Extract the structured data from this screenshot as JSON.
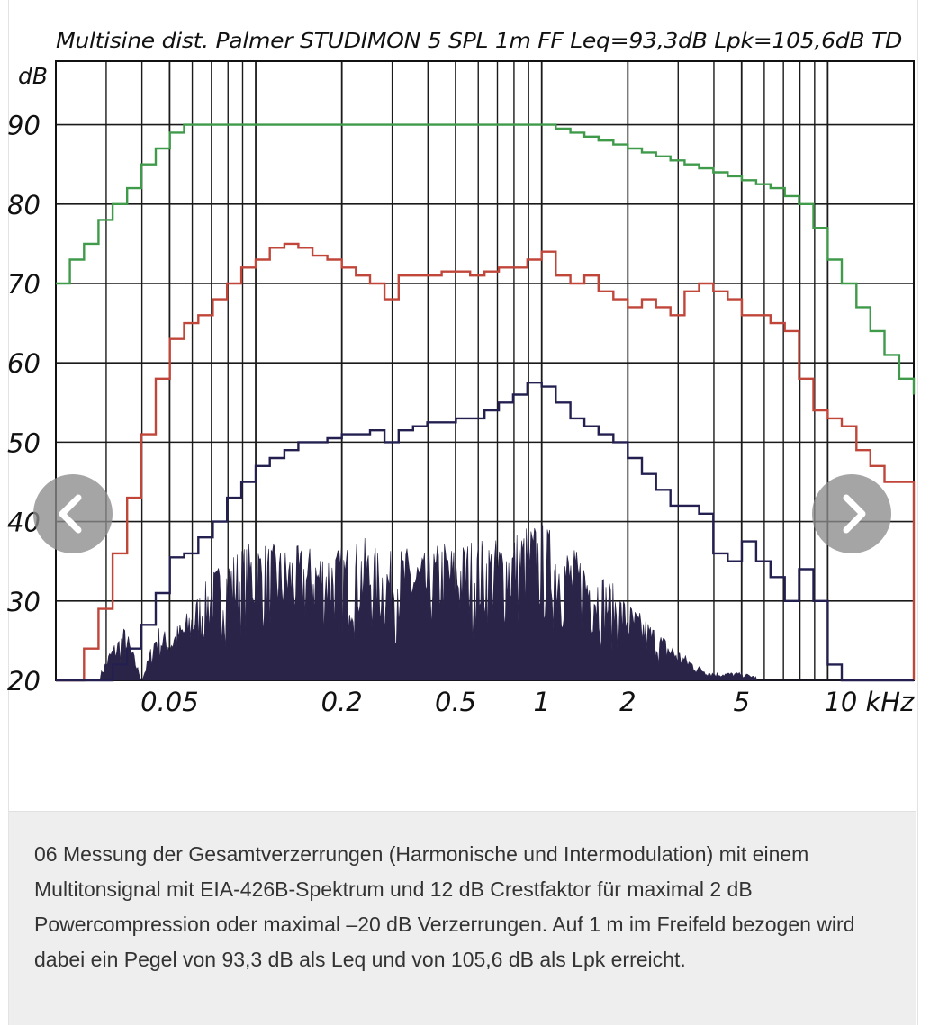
{
  "chart_data": {
    "type": "line",
    "title": "Multisine dist.    Palmer STUDIMON 5 SPL 1m FF Leq=93,3dB  Lpk=105,6dB TD",
    "ylabel": "dB",
    "xlabel": "kHz",
    "x_scale": "log",
    "xlim": [
      0.02,
      20
    ],
    "ylim": [
      20,
      98
    ],
    "grid": true,
    "y_ticks": [
      {
        "value": 20,
        "label": "20"
      },
      {
        "value": 30,
        "label": "30"
      },
      {
        "value": 40,
        "label": "40"
      },
      {
        "value": 50,
        "label": "50"
      },
      {
        "value": 60,
        "label": "60"
      },
      {
        "value": 70,
        "label": "70"
      },
      {
        "value": 80,
        "label": "80"
      },
      {
        "value": 90,
        "label": "90"
      }
    ],
    "x_ticks": [
      {
        "value": 0.05,
        "label": "0.05"
      },
      {
        "value": 0.2,
        "label": "0.2"
      },
      {
        "value": 0.5,
        "label": "0.5"
      },
      {
        "value": 1,
        "label": "1"
      },
      {
        "value": 2,
        "label": "2"
      },
      {
        "value": 5,
        "label": "5"
      },
      {
        "value": 10,
        "label": "10 kHz"
      }
    ],
    "series": [
      {
        "color": "#3f9a4a",
        "style": "step",
        "x": [
          0.02,
          0.0224,
          0.0251,
          0.0282,
          0.0316,
          0.0355,
          0.0398,
          0.0447,
          0.0501,
          0.0562,
          0.063,
          1.0,
          1.12,
          1.26,
          1.41,
          1.58,
          1.78,
          2.0,
          2.24,
          2.51,
          2.82,
          3.16,
          3.55,
          3.98,
          4.47,
          5.01,
          5.62,
          6.31,
          7.08,
          7.94,
          8.91,
          10.0,
          11.2,
          12.6,
          14.1,
          15.8,
          17.8,
          20.0
        ],
        "y": [
          70,
          73,
          75,
          78,
          80,
          82,
          85,
          87,
          89,
          90,
          90,
          90,
          89.5,
          89,
          88.5,
          88,
          87.5,
          87,
          86.5,
          86,
          85.5,
          85,
          84.5,
          84,
          83.5,
          83,
          82.5,
          82,
          81,
          80,
          77,
          73,
          70,
          67,
          64,
          61,
          58,
          56
        ]
      },
      {
        "color": "#c0463a",
        "style": "step",
        "x": [
          0.02,
          0.0224,
          0.0251,
          0.0282,
          0.0316,
          0.0355,
          0.0398,
          0.0447,
          0.0501,
          0.0562,
          0.063,
          0.0708,
          0.0794,
          0.0891,
          0.1,
          0.112,
          0.126,
          0.141,
          0.158,
          0.178,
          0.2,
          0.224,
          0.251,
          0.282,
          0.316,
          0.355,
          0.398,
          0.447,
          0.501,
          0.562,
          0.631,
          0.708,
          0.794,
          0.891,
          1.0,
          1.12,
          1.26,
          1.41,
          1.58,
          1.78,
          2.0,
          2.24,
          2.51,
          2.82,
          3.16,
          3.55,
          3.98,
          4.47,
          5.01,
          5.62,
          6.31,
          7.08,
          7.94,
          8.91,
          10.0,
          11.2,
          12.6,
          14.1,
          15.8,
          17.8,
          20.0
        ],
        "y": [
          16,
          20,
          24,
          29,
          36,
          43,
          51,
          58,
          63,
          65,
          66,
          68,
          70,
          72,
          73,
          74.5,
          75,
          74.5,
          73.5,
          73,
          72,
          71,
          70,
          68,
          71,
          71,
          71,
          71.5,
          71.5,
          71,
          71.5,
          72,
          72,
          73,
          74,
          71,
          70,
          71,
          69,
          68,
          67,
          68,
          67,
          66,
          69,
          70,
          69,
          68,
          66,
          66,
          65,
          64,
          58,
          54,
          53,
          52,
          49,
          47,
          45,
          45,
          20
        ]
      },
      {
        "color": "#232050",
        "style": "step",
        "x": [
          0.02,
          0.0251,
          0.0282,
          0.0316,
          0.0355,
          0.0398,
          0.0447,
          0.0501,
          0.0562,
          0.063,
          0.0708,
          0.0794,
          0.0891,
          0.1,
          0.112,
          0.126,
          0.141,
          0.158,
          0.178,
          0.2,
          0.224,
          0.251,
          0.282,
          0.316,
          0.355,
          0.398,
          0.447,
          0.501,
          0.562,
          0.631,
          0.708,
          0.794,
          0.891,
          1.0,
          1.12,
          1.26,
          1.41,
          1.58,
          1.78,
          2.0,
          2.24,
          2.51,
          2.82,
          3.16,
          3.55,
          3.98,
          4.47,
          5.01,
          5.62,
          6.31,
          7.08,
          7.94,
          8.91,
          10.0,
          11.2,
          12.6,
          14.1
        ],
        "y": [
          20,
          20,
          20,
          22,
          24,
          27,
          31,
          35.5,
          36,
          38,
          40,
          43,
          45,
          47,
          48,
          49,
          50,
          50,
          50.5,
          51,
          51,
          51.5,
          50,
          51.5,
          52,
          52.5,
          52.5,
          53,
          53,
          54,
          55,
          56,
          57.5,
          57,
          55,
          53,
          52,
          51,
          50,
          48,
          46,
          44,
          42,
          42,
          41,
          36,
          35,
          37.5,
          35,
          33,
          30,
          34,
          30,
          22,
          20,
          20,
          20
        ]
      },
      {
        "color": "#2b2449",
        "style": "filled-spectrum",
        "x": [
          0.02,
          0.028,
          0.031,
          0.035,
          0.04,
          0.045,
          0.05,
          0.056,
          0.063,
          0.071,
          0.08,
          0.09,
          0.1,
          0.12,
          0.14,
          0.16,
          0.18,
          0.2,
          0.24,
          0.28,
          0.33,
          0.4,
          0.45,
          0.5,
          0.56,
          0.63,
          0.7,
          0.8,
          0.9,
          1.0,
          1.1,
          1.25,
          1.4,
          1.6,
          1.8,
          2.0,
          2.3,
          2.6,
          3.0,
          3.5,
          4.0,
          5.0,
          6.3,
          8.0,
          10.0,
          20.0
        ],
        "y": [
          20,
          20,
          24,
          27,
          20,
          27,
          26,
          28,
          31,
          34,
          36,
          37,
          38,
          37,
          37,
          37,
          37,
          37,
          38,
          36,
          37,
          36,
          38,
          37,
          38,
          38,
          38,
          39,
          40,
          40,
          39,
          37,
          36,
          34,
          32,
          30,
          28,
          26,
          24,
          22,
          21,
          21,
          20,
          20,
          20,
          20
        ]
      }
    ]
  },
  "caption": {
    "text": "06 Messung der Gesamtverzerrungen (Harmonische und Intermodulation) mit einem Multitonsignal mit EIA-426B-Spektrum und 12 dB Crestfaktor für maximal 2 dB Powercompression oder maximal –20 dB Verzerrungen. Auf 1 m im Freifeld bezogen wird dabei ein Pegel von 93,3 dB als Leq und von 105,6 dB als Lpk erreicht."
  },
  "nav": {
    "prev_icon": "chevron-left-icon",
    "next_icon": "chevron-right-icon",
    "button_color": "#8c8c8c"
  }
}
